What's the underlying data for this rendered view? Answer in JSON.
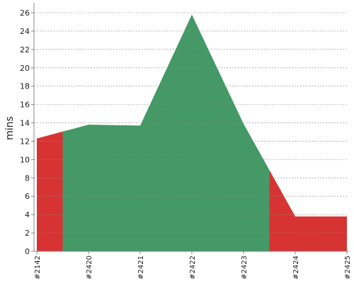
{
  "chart_data": {
    "type": "area",
    "y_label": "mins",
    "categories": [
      "#2142",
      "#2420",
      "#2421",
      "#2422",
      "#2423",
      "#2424",
      "#2425"
    ],
    "series": [
      {
        "values": [
          12.3,
          13.8,
          13.7,
          25.8,
          13.9,
          3.8,
          3.8
        ],
        "colors": [
          "#d73333",
          "#449966",
          "#449966",
          "#449966",
          "#449966",
          "#d73333",
          "#d73333"
        ]
      }
    ],
    "ylim": [
      0,
      26
    ],
    "yticks": [
      0,
      2,
      4,
      6,
      8,
      10,
      12,
      14,
      16,
      18,
      20,
      22,
      24,
      26
    ],
    "grid": true
  }
}
